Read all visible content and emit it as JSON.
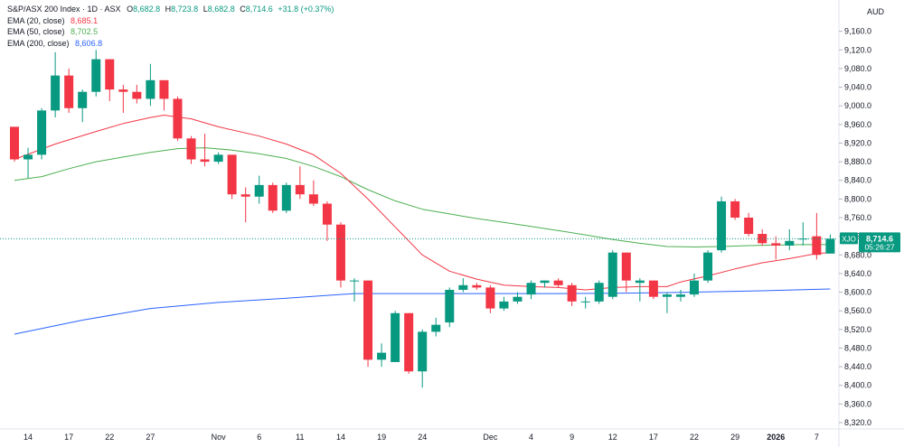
{
  "header": {
    "symbol_line": "S&P/ASX 200 Index · 1D · ASX",
    "ohlc": [
      {
        "k": "O",
        "v": "8,682.8"
      },
      {
        "k": "H",
        "v": "8,723.8"
      },
      {
        "k": "L",
        "v": "8,682.8"
      },
      {
        "k": "C",
        "v": "8,714.6"
      },
      {
        "k": "",
        "v": "+31.8 (+0.37%)"
      }
    ],
    "indicators": [
      {
        "label": "EMA (20, close)",
        "value": "8,685.1",
        "color": "#f23645"
      },
      {
        "label": "EMA (50, close)",
        "value": "8,702.5",
        "color": "#4caf50"
      },
      {
        "label": "EMA (200, close)",
        "value": "8,606.8",
        "color": "#2962ff"
      }
    ],
    "currency": "AUD"
  },
  "price_tag": {
    "ticker": "XJO",
    "price": "8,714.6",
    "countdown": "05:26:27",
    "color": "#089981"
  },
  "chart_data": {
    "type": "candlestick",
    "ylim": [
      8320,
      9200
    ],
    "y_ticks": [
      {
        "value": 9160,
        "label": "9,160.0"
      },
      {
        "value": 9120,
        "label": "9,120.0"
      },
      {
        "value": 9080,
        "label": "9,080.0"
      },
      {
        "value": 9040,
        "label": "9,040.0"
      },
      {
        "value": 9000,
        "label": "9,000.0"
      },
      {
        "value": 8960,
        "label": "8,960.0"
      },
      {
        "value": 8920,
        "label": "8,920.0"
      },
      {
        "value": 8880,
        "label": "8,880.0"
      },
      {
        "value": 8840,
        "label": "8,840.0"
      },
      {
        "value": 8800,
        "label": "8,800.0"
      },
      {
        "value": 8760,
        "label": "8,760.0"
      },
      {
        "value": 8720,
        "label": "8,720.0"
      },
      {
        "value": 8680,
        "label": "8,680.0"
      },
      {
        "value": 8640,
        "label": "8,640.0"
      },
      {
        "value": 8600,
        "label": "8,600.0"
      },
      {
        "value": 8560,
        "label": "8,560.0"
      },
      {
        "value": 8520,
        "label": "8,520.0"
      },
      {
        "value": 8480,
        "label": "8,480.0"
      },
      {
        "value": 8440,
        "label": "8,440.0"
      },
      {
        "value": 8400,
        "label": "8,400.0"
      },
      {
        "value": 8360,
        "label": "8,360.0"
      },
      {
        "value": 8320,
        "label": "8,320.0"
      }
    ],
    "x_ticks": [
      {
        "index": 1,
        "label": "14",
        "bold": false
      },
      {
        "index": 4,
        "label": "17",
        "bold": false
      },
      {
        "index": 7,
        "label": "22",
        "bold": false
      },
      {
        "index": 10,
        "label": "27",
        "bold": false
      },
      {
        "index": 15,
        "label": "Nov",
        "bold": false
      },
      {
        "index": 18,
        "label": "6",
        "bold": false
      },
      {
        "index": 21,
        "label": "11",
        "bold": false
      },
      {
        "index": 24,
        "label": "14",
        "bold": false
      },
      {
        "index": 27,
        "label": "19",
        "bold": false
      },
      {
        "index": 30,
        "label": "24",
        "bold": false
      },
      {
        "index": 35,
        "label": "Dec",
        "bold": false
      },
      {
        "index": 38,
        "label": "4",
        "bold": false
      },
      {
        "index": 41,
        "label": "9",
        "bold": false
      },
      {
        "index": 44,
        "label": "12",
        "bold": false
      },
      {
        "index": 47,
        "label": "17",
        "bold": false
      },
      {
        "index": 50,
        "label": "22",
        "bold": false
      },
      {
        "index": 53,
        "label": "29",
        "bold": false
      },
      {
        "index": 56,
        "label": "2026",
        "bold": true
      },
      {
        "index": 59,
        "label": "7",
        "bold": false
      }
    ],
    "up_color": "#089981",
    "down_color": "#f23645",
    "candles": [
      {
        "o": 8955,
        "h": 8955,
        "l": 8880,
        "c": 8885
      },
      {
        "o": 8885,
        "h": 8910,
        "l": 8845,
        "c": 8895
      },
      {
        "o": 8895,
        "h": 8995,
        "l": 8885,
        "c": 8990
      },
      {
        "o": 8990,
        "h": 9115,
        "l": 8975,
        "c": 9065
      },
      {
        "o": 9065,
        "h": 9080,
        "l": 8985,
        "c": 8995
      },
      {
        "o": 8995,
        "h": 9035,
        "l": 8965,
        "c": 9030
      },
      {
        "o": 9030,
        "h": 9120,
        "l": 9020,
        "c": 9100
      },
      {
        "o": 9100,
        "h": 9100,
        "l": 9010,
        "c": 9035
      },
      {
        "o": 9035,
        "h": 9045,
        "l": 8985,
        "c": 9030
      },
      {
        "o": 9030,
        "h": 9045,
        "l": 9005,
        "c": 9015
      },
      {
        "o": 9015,
        "h": 9090,
        "l": 9000,
        "c": 9055
      },
      {
        "o": 9055,
        "h": 9055,
        "l": 8990,
        "c": 9015
      },
      {
        "o": 9015,
        "h": 9020,
        "l": 8925,
        "c": 8930
      },
      {
        "o": 8930,
        "h": 8935,
        "l": 8875,
        "c": 8885
      },
      {
        "o": 8885,
        "h": 8940,
        "l": 8870,
        "c": 8880
      },
      {
        "o": 8880,
        "h": 8900,
        "l": 8875,
        "c": 8895
      },
      {
        "o": 8895,
        "h": 8895,
        "l": 8800,
        "c": 8810
      },
      {
        "o": 8810,
        "h": 8825,
        "l": 8750,
        "c": 8805
      },
      {
        "o": 8805,
        "h": 8850,
        "l": 8790,
        "c": 8830
      },
      {
        "o": 8830,
        "h": 8835,
        "l": 8770,
        "c": 8775
      },
      {
        "o": 8775,
        "h": 8835,
        "l": 8770,
        "c": 8830
      },
      {
        "o": 8830,
        "h": 8870,
        "l": 8800,
        "c": 8810
      },
      {
        "o": 8810,
        "h": 8840,
        "l": 8785,
        "c": 8790
      },
      {
        "o": 8790,
        "h": 8795,
        "l": 8710,
        "c": 8745
      },
      {
        "o": 8745,
        "h": 8750,
        "l": 8610,
        "c": 8625
      },
      {
        "o": 8625,
        "h": 8630,
        "l": 8580,
        "c": 8625
      },
      {
        "o": 8625,
        "h": 8625,
        "l": 8440,
        "c": 8455
      },
      {
        "o": 8455,
        "h": 8490,
        "l": 8440,
        "c": 8470
      },
      {
        "o": 8450,
        "h": 8560,
        "l": 8450,
        "c": 8555
      },
      {
        "o": 8555,
        "h": 8555,
        "l": 8425,
        "c": 8430
      },
      {
        "o": 8430,
        "h": 8520,
        "l": 8395,
        "c": 8515
      },
      {
        "o": 8515,
        "h": 8545,
        "l": 8505,
        "c": 8530
      },
      {
        "o": 8535,
        "h": 8610,
        "l": 8525,
        "c": 8605
      },
      {
        "o": 8605,
        "h": 8630,
        "l": 8600,
        "c": 8615
      },
      {
        "o": 8615,
        "h": 8620,
        "l": 8605,
        "c": 8610
      },
      {
        "o": 8610,
        "h": 8615,
        "l": 8555,
        "c": 8565
      },
      {
        "o": 8565,
        "h": 8590,
        "l": 8560,
        "c": 8580
      },
      {
        "o": 8580,
        "h": 8600,
        "l": 8575,
        "c": 8590
      },
      {
        "o": 8595,
        "h": 8625,
        "l": 8585,
        "c": 8620
      },
      {
        "o": 8620,
        "h": 8625,
        "l": 8610,
        "c": 8625
      },
      {
        "o": 8625,
        "h": 8630,
        "l": 8610,
        "c": 8615
      },
      {
        "o": 8615,
        "h": 8620,
        "l": 8570,
        "c": 8580
      },
      {
        "o": 8580,
        "h": 8590,
        "l": 8565,
        "c": 8580
      },
      {
        "o": 8580,
        "h": 8625,
        "l": 8575,
        "c": 8620
      },
      {
        "o": 8590,
        "h": 8690,
        "l": 8585,
        "c": 8685
      },
      {
        "o": 8685,
        "h": 8685,
        "l": 8600,
        "c": 8625
      },
      {
        "o": 8620,
        "h": 8630,
        "l": 8580,
        "c": 8625
      },
      {
        "o": 8625,
        "h": 8625,
        "l": 8585,
        "c": 8590
      },
      {
        "o": 8590,
        "h": 8600,
        "l": 8555,
        "c": 8595
      },
      {
        "o": 8590,
        "h": 8605,
        "l": 8580,
        "c": 8595
      },
      {
        "o": 8595,
        "h": 8640,
        "l": 8590,
        "c": 8625
      },
      {
        "o": 8625,
        "h": 8690,
        "l": 8620,
        "c": 8685
      },
      {
        "o": 8690,
        "h": 8805,
        "l": 8685,
        "c": 8795
      },
      {
        "o": 8795,
        "h": 8800,
        "l": 8755,
        "c": 8760
      },
      {
        "o": 8760,
        "h": 8770,
        "l": 8720,
        "c": 8725
      },
      {
        "o": 8725,
        "h": 8735,
        "l": 8700,
        "c": 8705
      },
      {
        "o": 8705,
        "h": 8720,
        "l": 8670,
        "c": 8700
      },
      {
        "o": 8700,
        "h": 8735,
        "l": 8690,
        "c": 8710
      },
      {
        "o": 8715,
        "h": 8750,
        "l": 8700,
        "c": 8715
      },
      {
        "o": 8720,
        "h": 8770,
        "l": 8670,
        "c": 8680
      },
      {
        "o": 8682.8,
        "h": 8723.8,
        "l": 8682.8,
        "c": 8714.6
      }
    ],
    "ema20": [
      [
        0,
        8885
      ],
      [
        3,
        8918
      ],
      [
        6,
        8945
      ],
      [
        8,
        8962
      ],
      [
        10,
        8975
      ],
      [
        11,
        8980
      ],
      [
        13,
        8972
      ],
      [
        15,
        8955
      ],
      [
        18,
        8935
      ],
      [
        20,
        8918
      ],
      [
        22,
        8895
      ],
      [
        24,
        8855
      ],
      [
        26,
        8800
      ],
      [
        28,
        8740
      ],
      [
        30,
        8680
      ],
      [
        32,
        8645
      ],
      [
        34,
        8628
      ],
      [
        36,
        8615
      ],
      [
        38,
        8612
      ],
      [
        40,
        8610
      ],
      [
        42,
        8605
      ],
      [
        44,
        8610
      ],
      [
        46,
        8612
      ],
      [
        48,
        8612
      ],
      [
        49,
        8622
      ],
      [
        51,
        8635
      ],
      [
        53,
        8650
      ],
      [
        55,
        8663
      ],
      [
        57,
        8672
      ],
      [
        59,
        8683
      ],
      [
        60,
        8685
      ]
    ],
    "ema50": [
      [
        0,
        8840
      ],
      [
        2,
        8848
      ],
      [
        4,
        8865
      ],
      [
        6,
        8880
      ],
      [
        8,
        8890
      ],
      [
        10,
        8900
      ],
      [
        12,
        8908
      ],
      [
        14,
        8910
      ],
      [
        16,
        8905
      ],
      [
        18,
        8897
      ],
      [
        20,
        8887
      ],
      [
        22,
        8870
      ],
      [
        24,
        8848
      ],
      [
        26,
        8820
      ],
      [
        28,
        8796
      ],
      [
        30,
        8778
      ],
      [
        32,
        8768
      ],
      [
        34,
        8758
      ],
      [
        36,
        8750
      ],
      [
        38,
        8741
      ],
      [
        40,
        8732
      ],
      [
        42,
        8723
      ],
      [
        44,
        8713
      ],
      [
        46,
        8705
      ],
      [
        48,
        8698
      ],
      [
        50,
        8697
      ],
      [
        52,
        8698
      ],
      [
        54,
        8700
      ],
      [
        56,
        8701
      ],
      [
        58,
        8702
      ],
      [
        60,
        8702.5
      ]
    ],
    "ema200": [
      [
        0,
        8510
      ],
      [
        5,
        8540
      ],
      [
        10,
        8565
      ],
      [
        15,
        8578
      ],
      [
        20,
        8587
      ],
      [
        25,
        8597
      ],
      [
        30,
        8597
      ],
      [
        35,
        8597
      ],
      [
        40,
        8597
      ],
      [
        45,
        8598
      ],
      [
        50,
        8600
      ],
      [
        55,
        8603
      ],
      [
        60,
        8606.8
      ]
    ]
  }
}
